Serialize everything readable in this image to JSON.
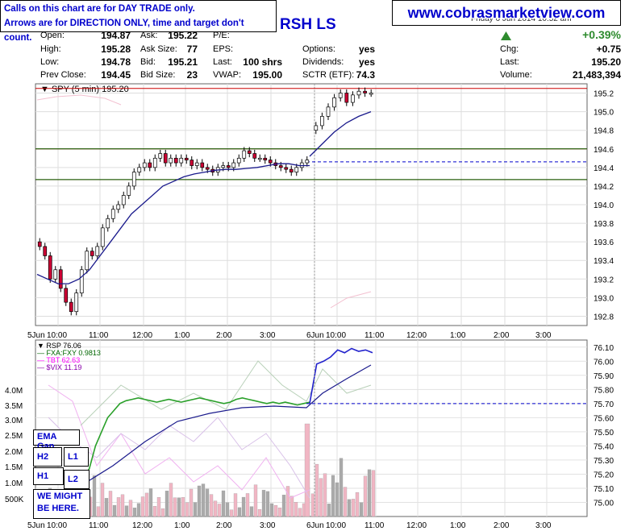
{
  "notice": {
    "line1": "Calls on this chart are for DAY TRADE only.",
    "line2": "Arrows are for DIRECTION ONLY, time and target don't count."
  },
  "website": "www.cobrasmarketview.com",
  "symbol_partial": "RSH LS",
  "date_partial": "Friday 6 Jun 2014 10:52 am",
  "quote": {
    "open_label": "Open:",
    "open": "194.87",
    "high_label": "High:",
    "high": "195.28",
    "low_label": "Low:",
    "low": "194.78",
    "prev_label": "Prev Close:",
    "prev": "194.45",
    "ask_label": "Ask:",
    "ask": "195.22",
    "asksize_label": "Ask Size:",
    "asksize": "77",
    "bid_label": "Bid:",
    "bid": "195.21",
    "bidsize_label": "Bid Size:",
    "bidsize": "23",
    "pe_label": "P/E:",
    "pe": "",
    "eps_label": "EPS:",
    "eps": "",
    "last_label": "Last:",
    "last": "100 shrs",
    "vwap_label": "VWAP:",
    "vwap": "195.00",
    "options_label": "Options:",
    "options": "yes",
    "dividends_label": "Dividends:",
    "dividends": "yes",
    "sctr_label": "SCTR (ETF):",
    "sctr": "74.3",
    "pct_change": "+0.39%",
    "chg_label": "Chg:",
    "chg": "+0.75",
    "last2_label": "Last:",
    "last2": "195.20",
    "volume_label": "Volume:",
    "volume": "21,483,394",
    "up_color": "#2e8b2e"
  },
  "boxes": {
    "ema_gap": "EMA Gap",
    "h2": "H2",
    "l1": "L1",
    "h1": "H1",
    "l2": "L2",
    "might1": "WE MIGHT",
    "might2": "BE HERE."
  },
  "chart_data": [
    {
      "type": "candlestick",
      "legend": "SPY (5 min) 195.20",
      "ylim": [
        192.7,
        195.3
      ],
      "y_ticks": [
        "195.2",
        "195.0",
        "194.8",
        "194.6",
        "194.4",
        "194.2",
        "194.0",
        "193.8",
        "193.6",
        "193.4",
        "193.2",
        "193.0",
        "192.8"
      ],
      "x_ticks": [
        "5Jun",
        "10:00",
        "11:00",
        "12:00",
        "1:00",
        "2:00",
        "3:00",
        "6Jun",
        "10:00",
        "11:00",
        "12:00",
        "1:00",
        "2:00",
        "3:00"
      ],
      "horizontal_levels": [
        {
          "value": 195.25,
          "color": "#cc0000"
        },
        {
          "value": 194.6,
          "color": "#cc0000"
        },
        {
          "value": 194.6,
          "color": "#006600"
        },
        {
          "value": 194.46,
          "color": "#0000cc",
          "dashed": true
        },
        {
          "value": 194.27,
          "color": "#cc0000"
        },
        {
          "value": 194.27,
          "color": "#006600"
        }
      ],
      "closes_day1": [
        193.55,
        193.45,
        193.2,
        193.3,
        193.1,
        192.95,
        192.85,
        193.05,
        193.3,
        193.5,
        193.45,
        193.55,
        193.75,
        193.85,
        193.95,
        194.0,
        194.1,
        194.2,
        194.35,
        194.4,
        194.45,
        194.4,
        194.5,
        194.55,
        194.45,
        194.5,
        194.45,
        194.5,
        194.48,
        194.42,
        194.45,
        194.4,
        194.38,
        194.35,
        194.4,
        194.42,
        194.4,
        194.45,
        194.5,
        194.58,
        194.55,
        194.5,
        194.5,
        194.48,
        194.45,
        194.42,
        194.4,
        194.38,
        194.35,
        194.4,
        194.45,
        194.48
      ],
      "closes_day2": [
        194.85,
        194.95,
        195.05,
        195.15,
        195.2,
        195.1,
        195.18,
        195.22,
        195.2,
        195.2
      ],
      "ema_day1": [
        193.25,
        193.2,
        193.15,
        193.15,
        193.2,
        193.3,
        193.45,
        193.6,
        193.75,
        193.9,
        194.0,
        194.1,
        194.2,
        194.25,
        194.3,
        194.33,
        194.35,
        194.37,
        194.38,
        194.38,
        194.39,
        194.4,
        194.42,
        194.44,
        194.44,
        194.42,
        194.42
      ],
      "ema_day2": [
        194.52,
        194.65,
        194.78,
        194.88,
        194.95,
        195.0
      ]
    },
    {
      "type": "line",
      "legend": [
        "RSP 76.06",
        "FXA:FXY 0.9813",
        "TBT 62.63",
        "$VIX 11.19"
      ],
      "legend_colors": [
        "#000000",
        "#006600",
        "#ff00ff",
        "#8800aa"
      ],
      "ylim": [
        74.9,
        76.15
      ],
      "y_ticks": [
        "76.10",
        "76.00",
        "75.90",
        "75.80",
        "75.70",
        "75.60",
        "75.50",
        "75.40",
        "75.30",
        "75.20",
        "75.10",
        "75.00"
      ],
      "volume_ticks": [
        "4.0M",
        "3.5M",
        "3.0M",
        "2.5M",
        "2.0M",
        "1.5M",
        "1.0M",
        "500K"
      ],
      "x_ticks": [
        "5Jun",
        "10:00",
        "11:00",
        "12:00",
        "1:00",
        "2:00",
        "3:00",
        "6Jun",
        "10:00",
        "11:00",
        "12:00",
        "1:00",
        "2:00",
        "3:00"
      ],
      "horizontal_levels": [
        {
          "value": 75.7,
          "color": "#0000cc",
          "dashed": true
        }
      ]
    }
  ]
}
